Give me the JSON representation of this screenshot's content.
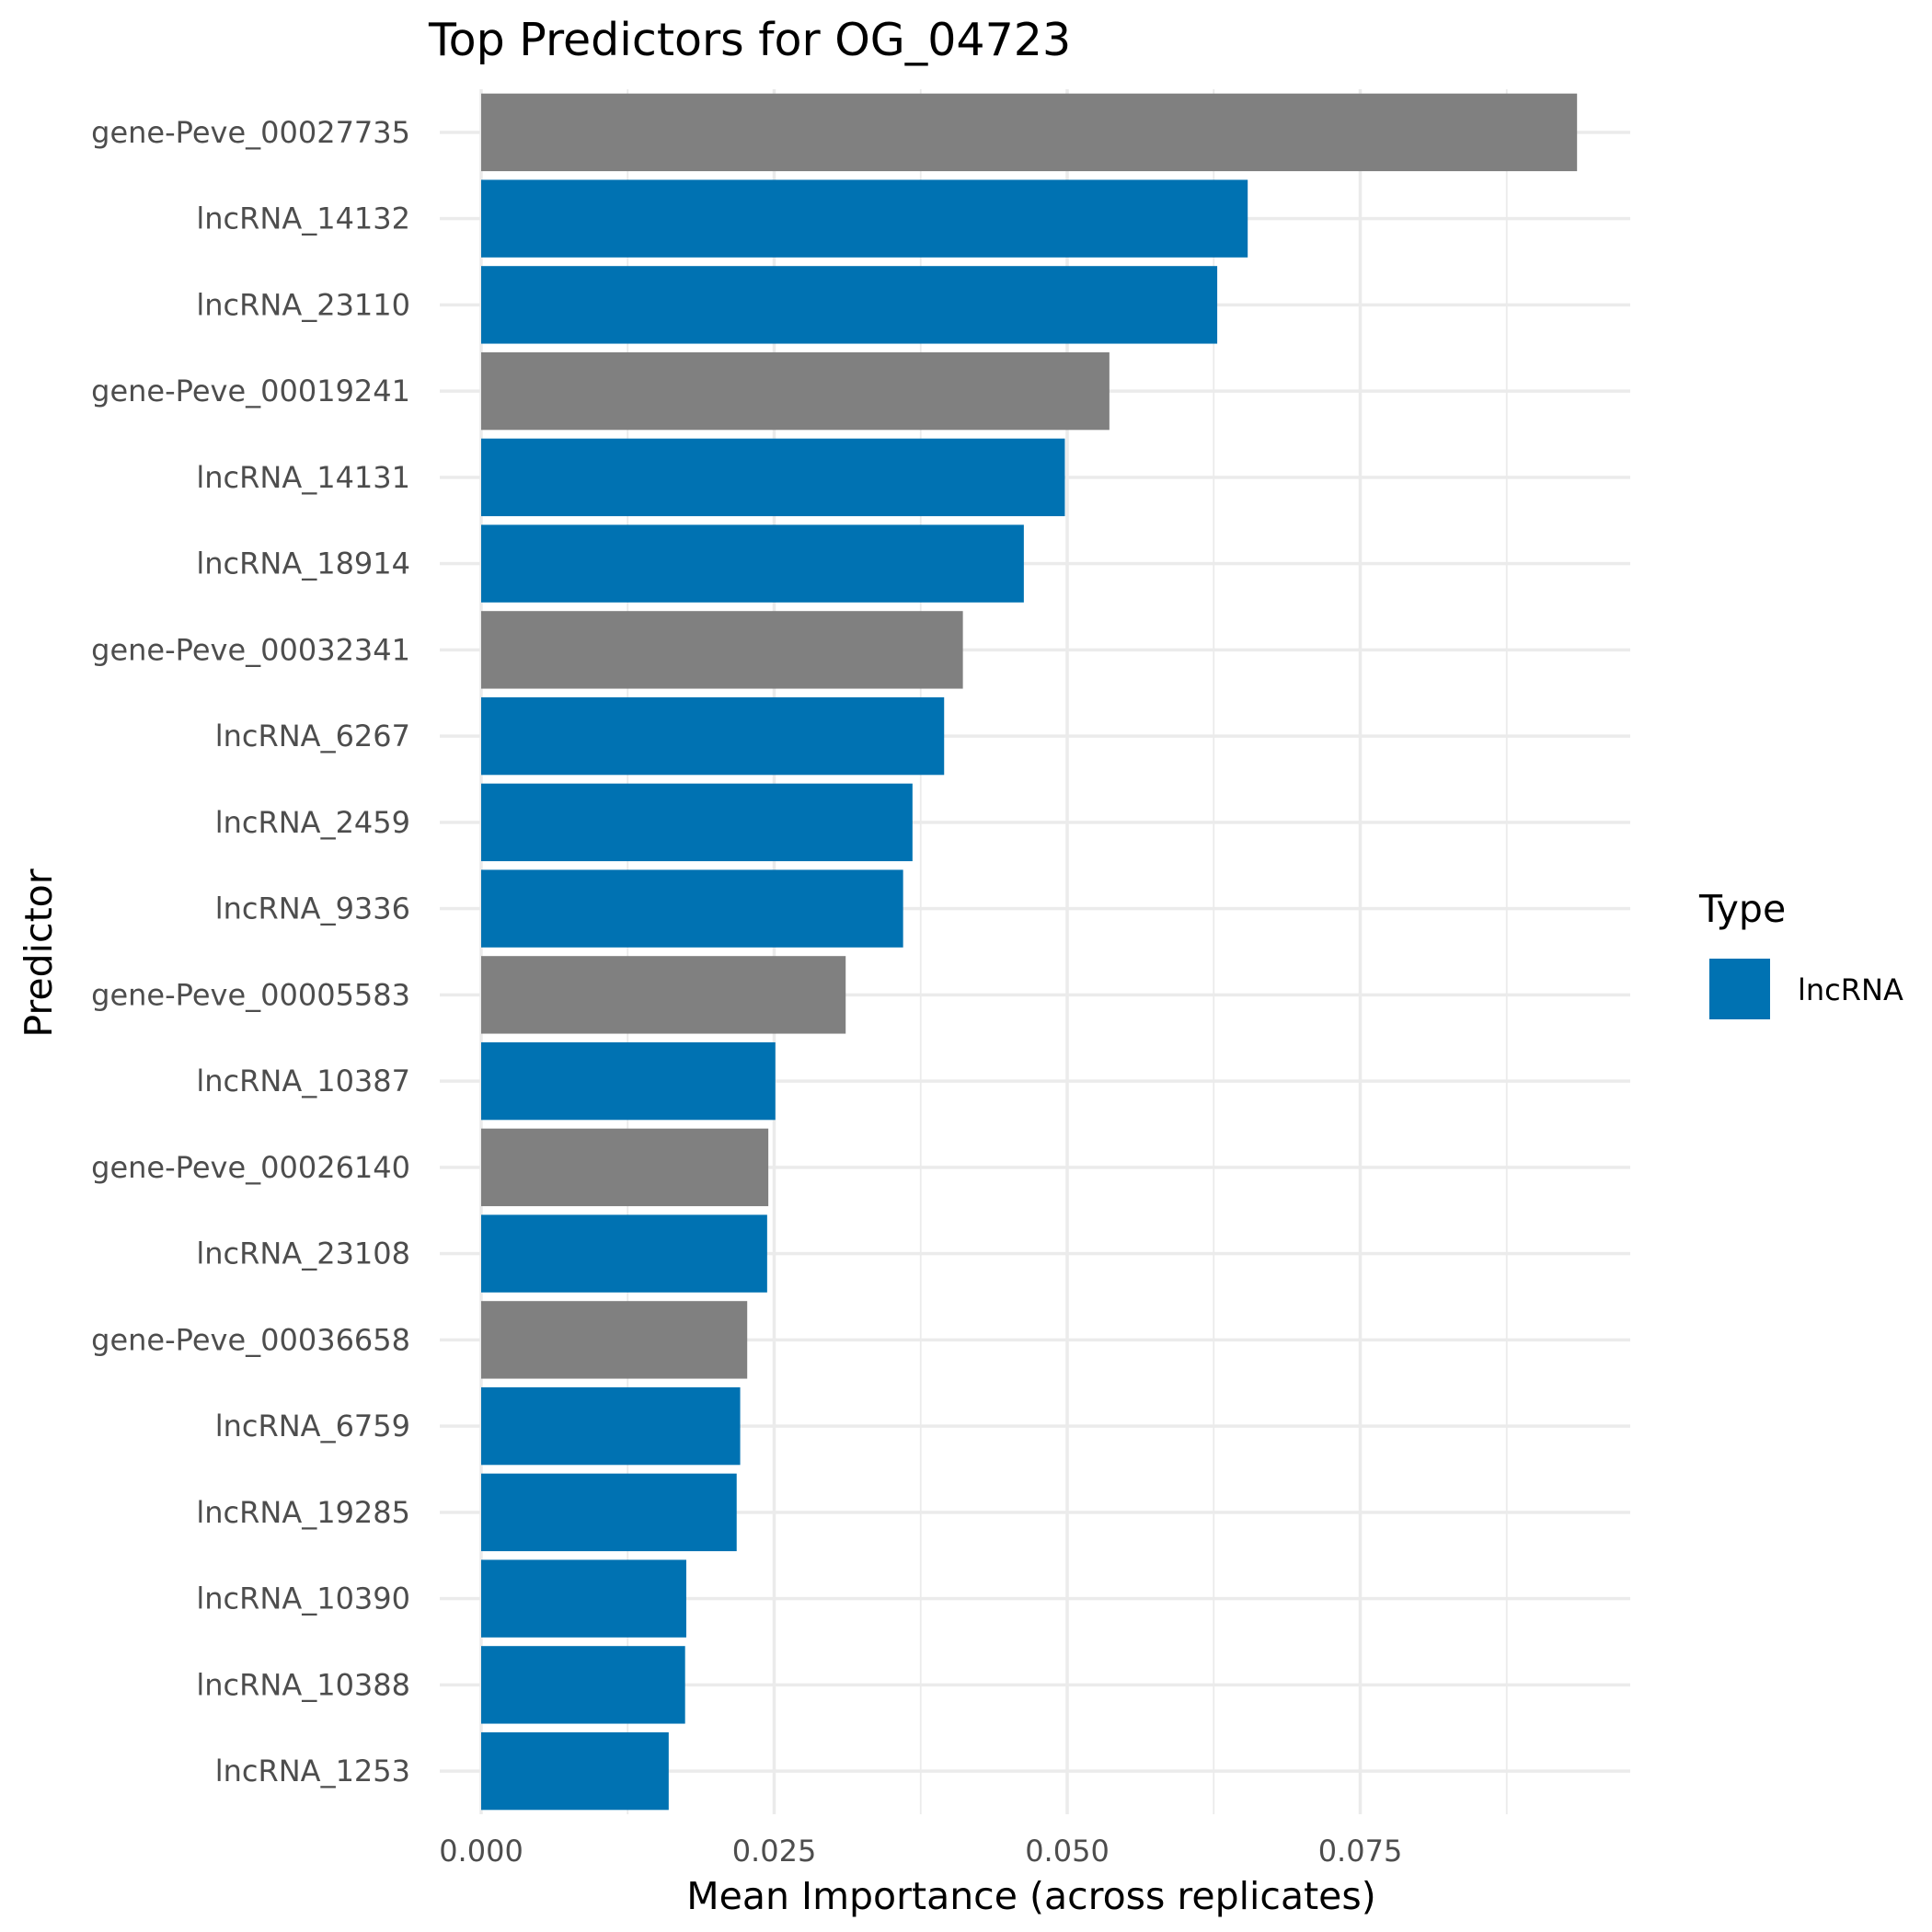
{
  "chart_data": {
    "type": "bar",
    "orientation": "horizontal",
    "title": "Top Predictors for OG_04723",
    "xlabel": "Mean Importance (across replicates)",
    "ylabel": "Predictor",
    "xlim": [
      0,
      0.098
    ],
    "x_ticks": [
      0.0,
      0.025,
      0.05,
      0.075
    ],
    "x_tick_labels": [
      "0.000",
      "0.025",
      "0.050",
      "0.075"
    ],
    "grid": true,
    "legend": {
      "title": "Type",
      "placement": "right",
      "entries": [
        {
          "label": "lncRNA",
          "color": "#0072B2"
        }
      ]
    },
    "categories": [
      "gene-Peve_00027735",
      "lncRNA_14132",
      "lncRNA_23110",
      "gene-Peve_00019241",
      "lncRNA_14131",
      "lncRNA_18914",
      "gene-Peve_00032341",
      "lncRNA_6267",
      "lncRNA_2459",
      "lncRNA_9336",
      "gene-Peve_00005583",
      "lncRNA_10387",
      "gene-Peve_00026140",
      "lncRNA_23108",
      "gene-Peve_00036658",
      "lncRNA_6759",
      "lncRNA_19285",
      "lncRNA_10390",
      "lncRNA_10388",
      "lncRNA_1253"
    ],
    "values": [
      0.0935,
      0.0654,
      0.0628,
      0.0536,
      0.0498,
      0.0463,
      0.0411,
      0.0395,
      0.0368,
      0.036,
      0.0311,
      0.0251,
      0.0245,
      0.0244,
      0.0227,
      0.0221,
      0.0218,
      0.0175,
      0.0174,
      0.016
    ],
    "types": [
      "gene",
      "lncRNA",
      "lncRNA",
      "gene",
      "lncRNA",
      "lncRNA",
      "gene",
      "lncRNA",
      "lncRNA",
      "lncRNA",
      "gene",
      "lncRNA",
      "gene",
      "lncRNA",
      "gene",
      "lncRNA",
      "lncRNA",
      "lncRNA",
      "lncRNA",
      "lncRNA"
    ],
    "colors": {
      "lncRNA": "#0072B2",
      "gene": "#808080"
    }
  }
}
